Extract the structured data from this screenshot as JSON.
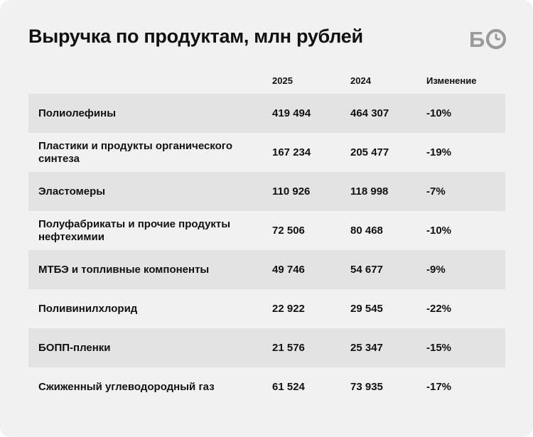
{
  "title": "Выручка по продуктам, млн рублей",
  "logo": {
    "text": "БО",
    "icon": "clock-icon"
  },
  "colors": {
    "card_bg": "#f1f1f1",
    "row_shade": "#e3e3e3",
    "text": "#111111"
  },
  "chart_data": {
    "type": "table",
    "title": "Выручка по продуктам, млн рублей",
    "columns": [
      "",
      "2025",
      "2024",
      "Изменение"
    ],
    "rows": [
      {
        "product": "Полиолефины",
        "v2025": "419 494",
        "v2024": "464 307",
        "change": "-10%"
      },
      {
        "product": "Пластики и продукты органического синтеза",
        "v2025": "167 234",
        "v2024": "205 477",
        "change": "-19%"
      },
      {
        "product": "Эластомеры",
        "v2025": "110 926",
        "v2024": "118 998",
        "change": "-7%"
      },
      {
        "product": "Полуфабрикаты и прочие продукты нефтехимии",
        "v2025": "72 506",
        "v2024": "80 468",
        "change": "-10%"
      },
      {
        "product": "МТБЭ и топливные компоненты",
        "v2025": "49 746",
        "v2024": "54 677",
        "change": "-9%"
      },
      {
        "product": "Поливинилхлорид",
        "v2025": "22 922",
        "v2024": "29 545",
        "change": "-22%"
      },
      {
        "product": "БОПП-пленки",
        "v2025": "21 576",
        "v2024": "25 347",
        "change": "-15%"
      },
      {
        "product": "Сжиженный углеводородный газ",
        "v2025": "61 524",
        "v2024": "73 935",
        "change": "-17%"
      }
    ]
  }
}
